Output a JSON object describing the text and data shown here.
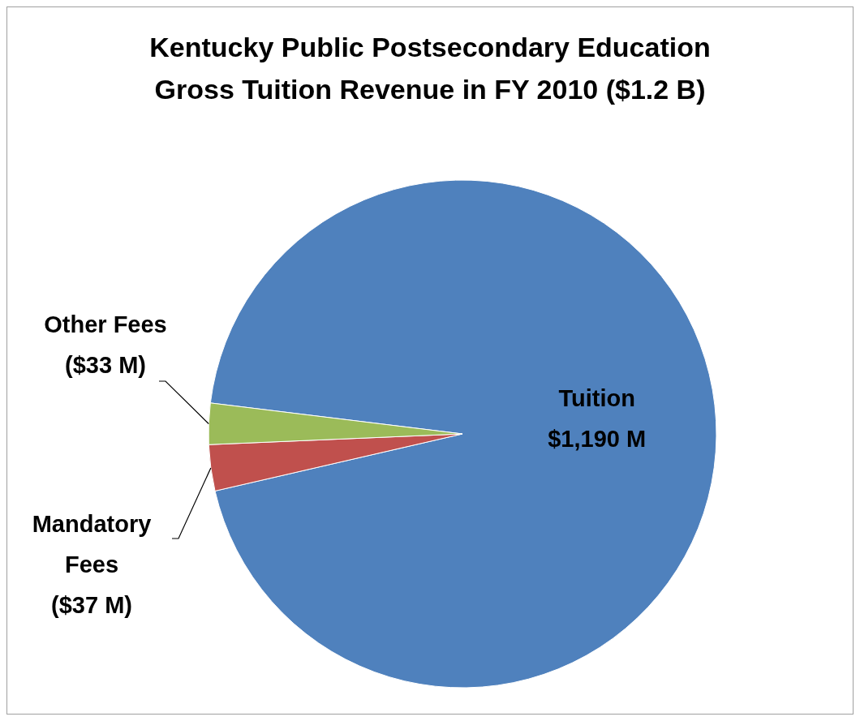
{
  "chart_data": {
    "type": "pie",
    "title": "Kentucky Public Postsecondary Education Gross Tuition Revenue in FY 2010 ($1.2 B)",
    "categories": [
      "Tuition",
      "Mandatory Fees",
      "Other Fees"
    ],
    "values": [
      1190,
      37,
      33
    ],
    "colors": [
      "#4f81bd",
      "#c0504d",
      "#9bbb59"
    ],
    "value_labels": [
      "$1,190 M",
      "($37 M)",
      "($33 M)"
    ]
  }
}
